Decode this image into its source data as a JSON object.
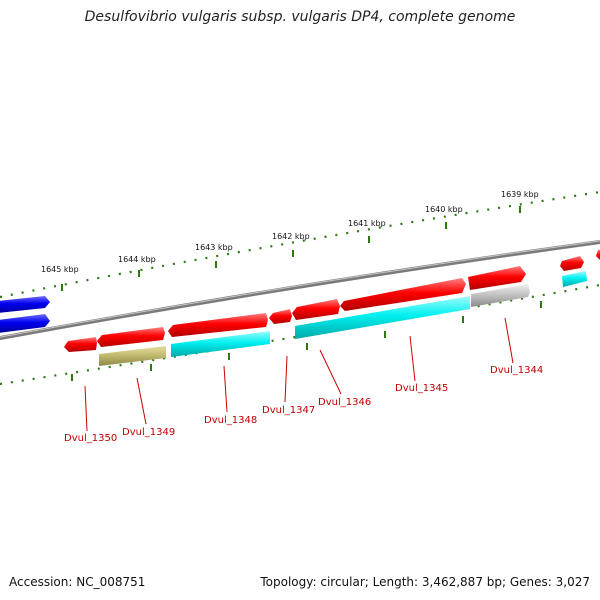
{
  "title": "Desulfovibrio vulgaris subsp. vulgaris DP4, complete genome",
  "footer": {
    "accession": "Accession: NC_008751",
    "summary": "Topology: circular; Length: 3,462,887 bp; Genes: 3,027"
  },
  "ticks": [
    {
      "label": "1639 kbp",
      "kbp": 1639
    },
    {
      "label": "1640 kbp",
      "kbp": 1640
    },
    {
      "label": "1641 kbp",
      "kbp": 1641
    },
    {
      "label": "1642 kbp",
      "kbp": 1642
    },
    {
      "label": "1643 kbp",
      "kbp": 1643
    },
    {
      "label": "1644 kbp",
      "kbp": 1644
    },
    {
      "label": "1645 kbp",
      "kbp": 1645
    }
  ],
  "genes": [
    {
      "label": "Dvul_1344"
    },
    {
      "label": "Dvul_1345"
    },
    {
      "label": "Dvul_1346"
    },
    {
      "label": "Dvul_1347"
    },
    {
      "label": "Dvul_1348"
    },
    {
      "label": "Dvul_1349"
    },
    {
      "label": "Dvul_1350"
    }
  ],
  "colors": {
    "backbone": "#7a7a7a",
    "gene": "#ff0000",
    "cds_cyan": "#00eeee",
    "cds_olive": "#bdb76b",
    "cds_gray": "#b8b8b8",
    "other_strand": "#0000ee",
    "tick": "#2a7a10",
    "label_line": "#cc0000"
  }
}
